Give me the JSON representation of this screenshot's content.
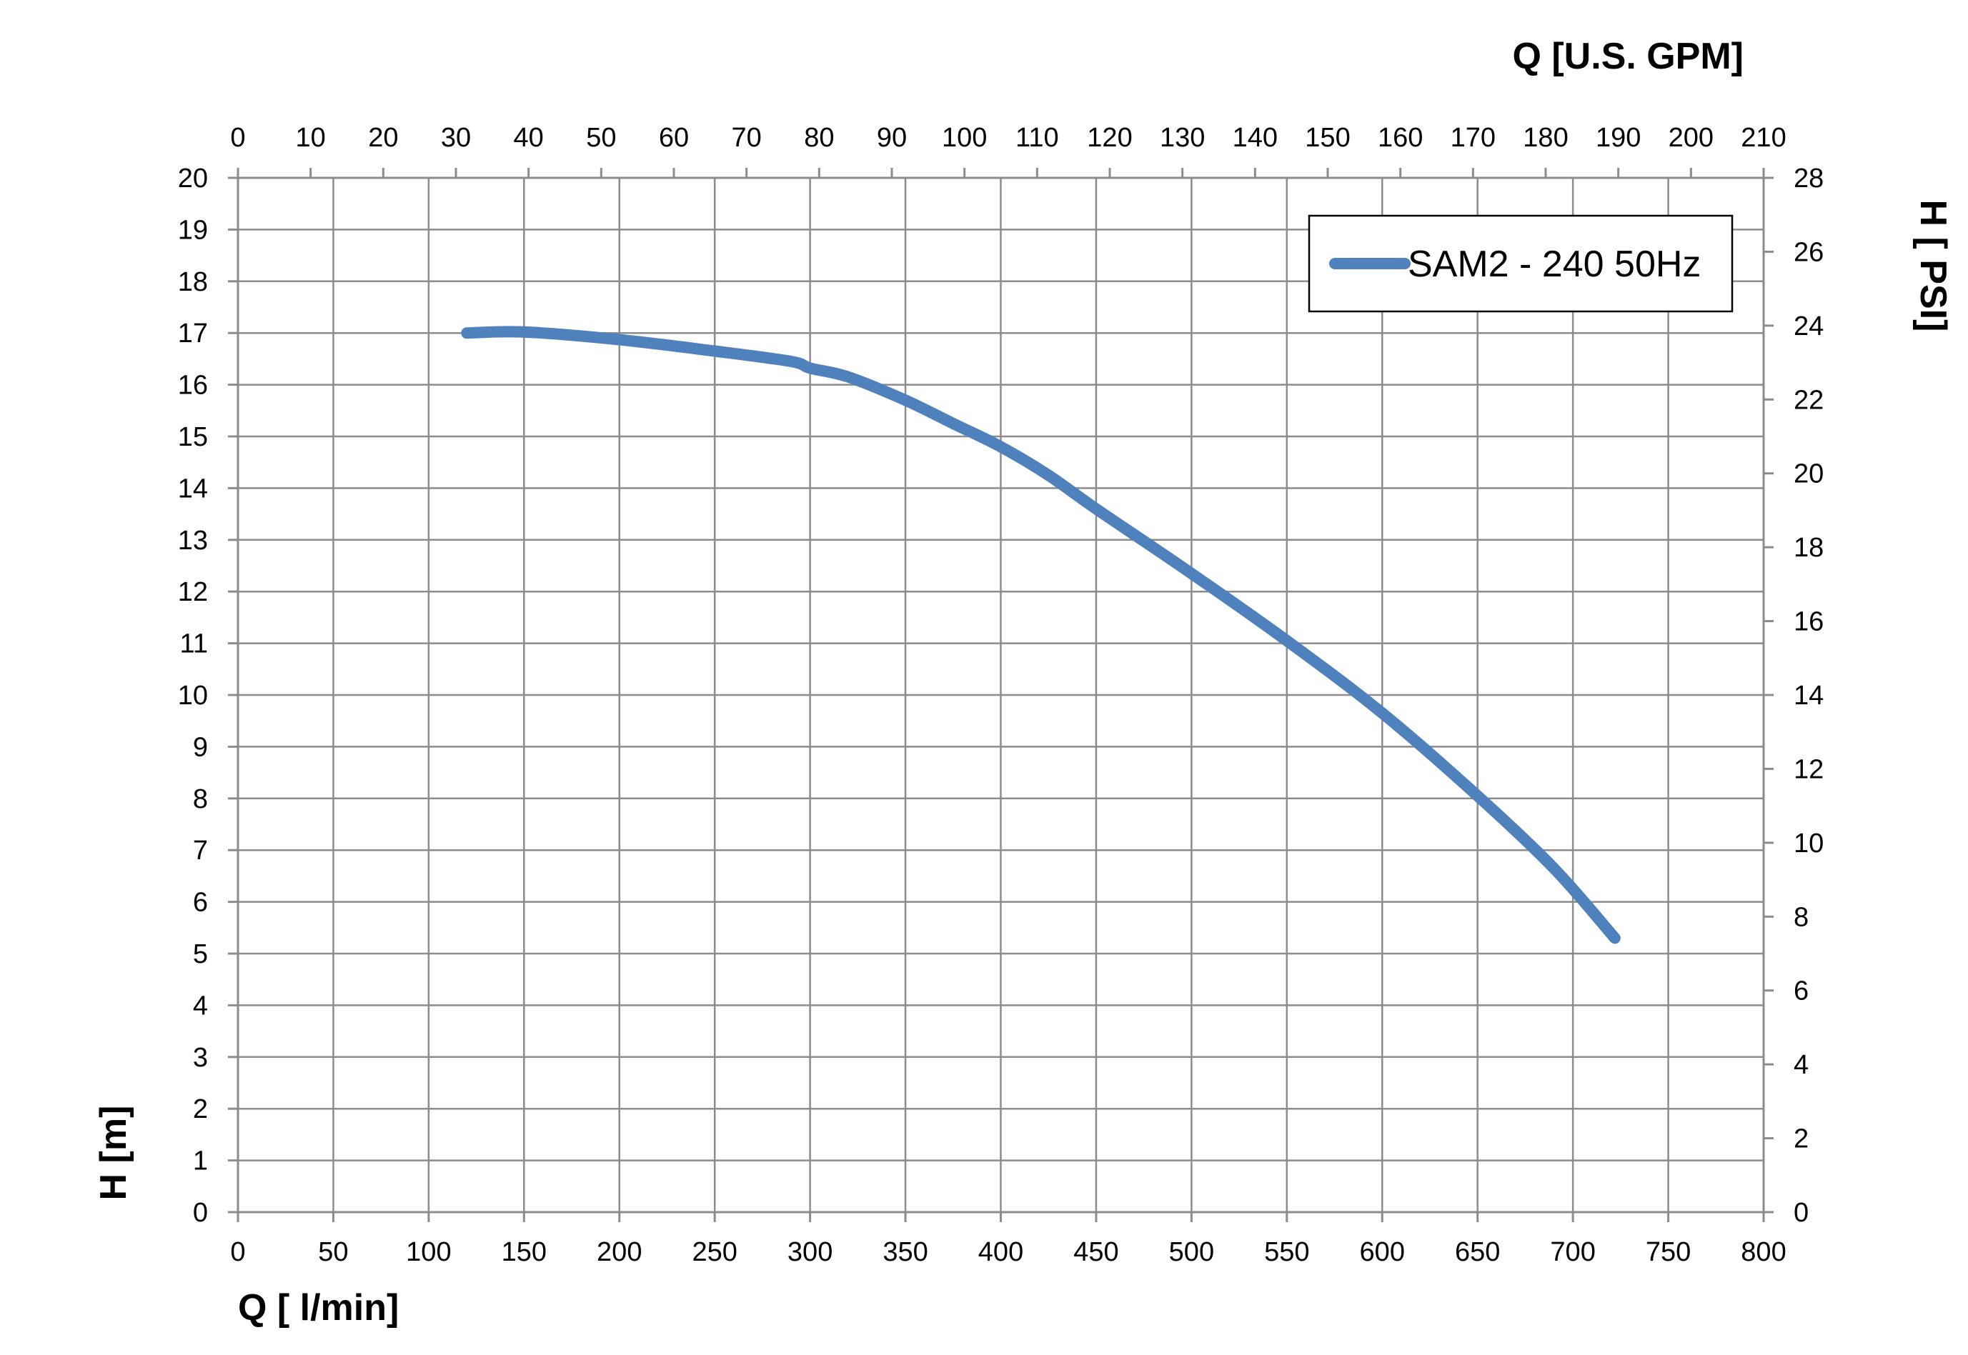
{
  "chart_data": {
    "type": "line",
    "title": "",
    "xlabel": "Q [ l/min]",
    "ylabel": "H [m]",
    "x2label": "Q  [U.S. GPM]",
    "y2label": "H [ PSI]",
    "xlim": [
      0,
      800
    ],
    "ylim": [
      0,
      20
    ],
    "x2lim": [
      0,
      210
    ],
    "y2lim": [
      0,
      28
    ],
    "x_ticks": [
      "0",
      "50",
      "100",
      "150",
      "200",
      "250",
      "300",
      "350",
      "400",
      "450",
      "500",
      "550",
      "600",
      "650",
      "700",
      "750",
      "800"
    ],
    "y_ticks": [
      "0",
      "1",
      "2",
      "3",
      "4",
      "5",
      "6",
      "7",
      "8",
      "9",
      "10",
      "11",
      "12",
      "13",
      "14",
      "15",
      "16",
      "17",
      "18",
      "19",
      "20"
    ],
    "x2_ticks": [
      "0",
      "10",
      "20",
      "30",
      "40",
      "50",
      "60",
      "70",
      "80",
      "90",
      "100",
      "110",
      "120",
      "130",
      "140",
      "150",
      "160",
      "170",
      "180",
      "190",
      "200",
      "210"
    ],
    "y2_ticks": [
      "0",
      "2",
      "4",
      "6",
      "8",
      "10",
      "12",
      "14",
      "16",
      "18",
      "20",
      "22",
      "24",
      "26",
      "28"
    ],
    "grid": true,
    "legend_position": "top-right",
    "series": [
      {
        "name": "SAM2 - 240 50Hz",
        "color": "#4f81bd",
        "x": [
          120,
          150,
          200,
          250,
          290,
          300,
          320,
          350,
          375,
          400,
          425,
          450,
          500,
          550,
          600,
          650,
          690,
          722
        ],
        "y": [
          17.0,
          17.02,
          16.87,
          16.65,
          16.45,
          16.32,
          16.15,
          15.7,
          15.25,
          14.8,
          14.25,
          13.6,
          12.35,
          11.05,
          9.65,
          8.05,
          6.65,
          5.3
        ]
      }
    ]
  }
}
